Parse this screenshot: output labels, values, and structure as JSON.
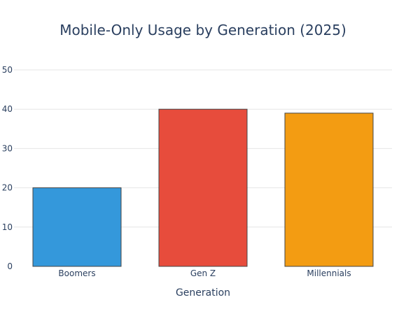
{
  "chart_data": {
    "type": "bar",
    "title": "Mobile-Only Usage by Generation (2025)",
    "xlabel": "Generation",
    "ylabel": "",
    "categories": [
      "Boomers",
      "Gen Z",
      "Millennials"
    ],
    "values": [
      20,
      40,
      39
    ],
    "colors": [
      "#3498db",
      "#e74c3c",
      "#f39c12"
    ],
    "ylim": [
      0,
      50
    ],
    "yticks": [
      0,
      10,
      20,
      30,
      40,
      50
    ],
    "grid": true,
    "legend": false
  }
}
